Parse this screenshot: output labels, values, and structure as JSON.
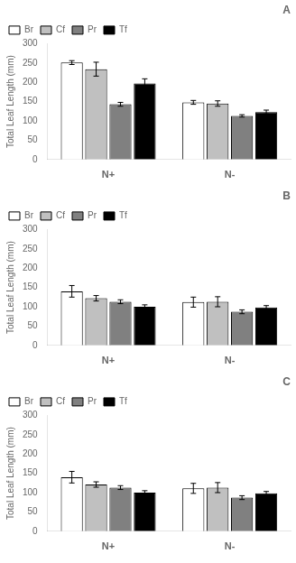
{
  "chart_data": [
    {
      "type": "bar",
      "title": "A",
      "ylabel": "Total Leaf Length (mm)",
      "categories": [
        "N+",
        "N-"
      ],
      "series": [
        {
          "name": "Br",
          "color": "#ffffff",
          "values": [
            251,
            148
          ],
          "errors": [
            5,
            5
          ]
        },
        {
          "name": "Cf",
          "color": "#c0c0c0",
          "values": [
            234,
            145
          ],
          "errors": [
            18,
            7
          ]
        },
        {
          "name": "Pr",
          "color": "#808080",
          "values": [
            143,
            113
          ],
          "errors": [
            5,
            3
          ]
        },
        {
          "name": "Tf",
          "color": "#000000",
          "values": [
            197,
            123
          ],
          "errors": [
            12,
            5
          ]
        }
      ],
      "ylim": [
        0,
        300
      ],
      "yticks": [
        0,
        50,
        100,
        150,
        200,
        250,
        300
      ],
      "grid": false,
      "legend": "upper left"
    },
    {
      "type": "bar",
      "title": "B",
      "ylabel": "Total Leaf Length (mm)",
      "categories": [
        "N+",
        "N-"
      ],
      "series": [
        {
          "name": "Br",
          "color": "#ffffff",
          "values": [
            140,
            112
          ],
          "errors": [
            15,
            13
          ]
        },
        {
          "name": "Cf",
          "color": "#c0c0c0",
          "values": [
            122,
            113
          ],
          "errors": [
            7,
            13
          ]
        },
        {
          "name": "Pr",
          "color": "#808080",
          "values": [
            113,
            87
          ],
          "errors": [
            5,
            5
          ]
        },
        {
          "name": "Tf",
          "color": "#000000",
          "values": [
            100,
            98
          ],
          "errors": [
            5,
            5
          ]
        }
      ],
      "ylim": [
        0,
        300
      ],
      "yticks": [
        0,
        50,
        100,
        150,
        200,
        250,
        300
      ],
      "grid": false,
      "legend": "upper left"
    },
    {
      "type": "bar",
      "title": "C",
      "ylabel": "Total Leaf Length (mm)",
      "categories": [
        "N+",
        "N-"
      ],
      "series": [
        {
          "name": "Br",
          "color": "#ffffff",
          "values": [
            140,
            111
          ],
          "errors": [
            15,
            13
          ]
        },
        {
          "name": "Cf",
          "color": "#c0c0c0",
          "values": [
            121,
            113
          ],
          "errors": [
            7,
            13
          ]
        },
        {
          "name": "Pr",
          "color": "#808080",
          "values": [
            113,
            87
          ],
          "errors": [
            5,
            5
          ]
        },
        {
          "name": "Tf",
          "color": "#000000",
          "values": [
            100,
            98
          ],
          "errors": [
            5,
            5
          ]
        }
      ],
      "ylim": [
        0,
        300
      ],
      "yticks": [
        0,
        50,
        100,
        150,
        200,
        250,
        300
      ],
      "grid": false,
      "legend": "upper left"
    }
  ]
}
